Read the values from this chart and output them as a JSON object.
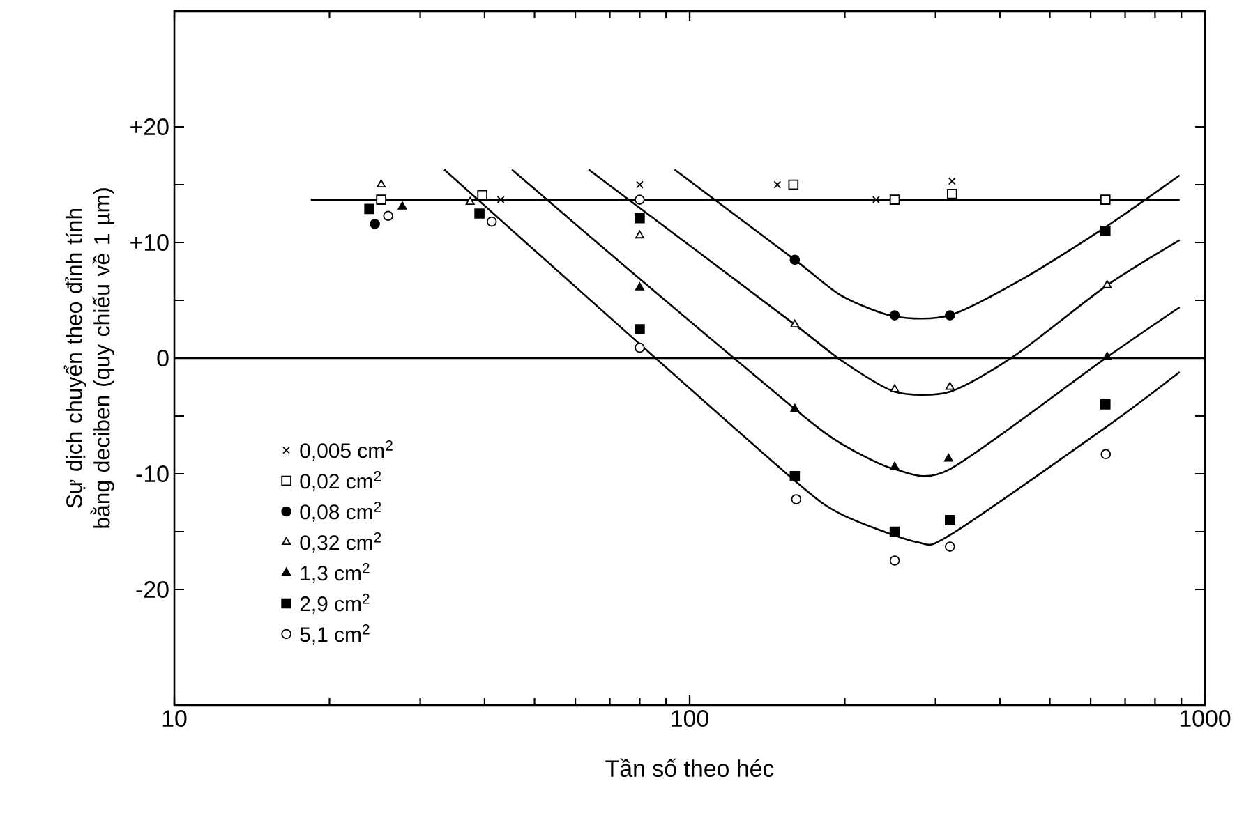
{
  "chart_data": {
    "type": "scatter",
    "xlabel": "Tần số theo héc",
    "ylabel": "Sự dịch chuyển theo đỉnh tính bằng deciben (quy chiếu về 1 µm)",
    "log": "x",
    "xlim": [
      10,
      1000
    ],
    "xticks": [
      10,
      100,
      1000
    ],
    "ylim": [
      -30,
      30
    ],
    "yticks": [
      {
        "value": 20,
        "label": "+20"
      },
      {
        "value": 15,
        "label": null
      },
      {
        "value": 10,
        "label": "+10"
      },
      {
        "value": 5,
        "label": null
      },
      0,
      {
        "value": -5,
        "label": null
      },
      -10,
      {
        "value": -15,
        "label": null
      },
      -20
    ],
    "legend": "bottom left",
    "grid": false,
    "ref_lines": [
      {
        "axis": "y",
        "value": 0,
        "color": "#000000"
      }
    ],
    "series": [
      {
        "name": "0,005 cm$^{2}$",
        "type": "scatter",
        "marker": "cross",
        "color": "#000000",
        "x": [
          43,
          80,
          148,
          230,
          323
        ],
        "values": [
          13.7,
          15.0,
          15.0,
          13.7,
          15.3
        ]
      },
      {
        "name": "0,02 cm$^{2}$",
        "type": "scatter",
        "marker": "square",
        "color": "#ffffff",
        "x": [
          25.2,
          39.6,
          159,
          250,
          323,
          641
        ],
        "values": [
          13.7,
          14.1,
          15.0,
          13.7,
          14.2,
          13.7
        ]
      },
      {
        "name": "0,08 cm$^{2}$",
        "type": "scatter",
        "marker": "circle",
        "color": "#000000",
        "x": [
          24.5,
          160,
          250,
          320
        ],
        "values": [
          11.6,
          8.5,
          3.7,
          3.7
        ]
      },
      {
        "name": "0,32 cm$^{2}$",
        "type": "scatter",
        "marker": "triangle",
        "color": "#ffffff",
        "x": [
          25.2,
          37.5,
          80,
          160,
          250,
          320,
          646
        ],
        "values": [
          15.0,
          13.5,
          10.6,
          2.9,
          -2.7,
          -2.5,
          6.3
        ]
      },
      {
        "name": "1,3 cm$^{2}$",
        "type": "scatter",
        "marker": "triangle",
        "color": "#000000",
        "x": [
          27.7,
          80,
          160,
          250,
          318,
          646
        ],
        "values": [
          13.1,
          6.1,
          -4.4,
          -9.4,
          -8.7,
          0.1
        ]
      },
      {
        "name": "2,9 cm$^{2}$",
        "type": "scatter",
        "marker": "square",
        "color": "#000000",
        "x": [
          23.9,
          39.1,
          80,
          80,
          160,
          250,
          320,
          641,
          641
        ],
        "values": [
          12.9,
          12.5,
          12.1,
          2.5,
          -10.2,
          -15.0,
          -14.0,
          11.0,
          -4.0
        ]
      },
      {
        "name": "5,1 cm$^{2}$",
        "type": "scatter",
        "marker": "circle",
        "color": "#ffffff",
        "x": [
          26,
          41.3,
          80,
          80,
          161,
          250,
          320,
          642
        ],
        "values": [
          12.3,
          11.8,
          13.7,
          0.9,
          -12.2,
          -17.5,
          -16.3,
          -8.3
        ]
      },
      {
        "type": "line",
        "color": "#000000",
        "x": [
          18.4,
          893
        ],
        "values": [
          13.7,
          13.7
        ]
      },
      {
        "type": "line",
        "color": "#000000",
        "x": [
          93.5,
          160,
          197,
          250,
          320,
          445,
          640,
          893
        ],
        "values": [
          16.3,
          8.5,
          5.4,
          3.6,
          3.7,
          6.9,
          11.3,
          15.8
        ]
      },
      {
        "type": "line",
        "color": "#000000",
        "x": [
          63.7,
          160,
          197,
          250,
          320,
          427,
          646,
          893
        ],
        "values": [
          16.3,
          2.9,
          -0.2,
          -2.9,
          -2.9,
          0.2,
          6.3,
          10.2
        ]
      },
      {
        "type": "line",
        "color": "#000000",
        "x": [
          45.2,
          76,
          160,
          197,
          250,
          320,
          646,
          893
        ],
        "values": [
          16.3,
          7.7,
          -4.4,
          -7.4,
          -9.6,
          -9.6,
          0.1,
          4.4
        ]
      },
      {
        "type": "line",
        "color": "#000000",
        "x": [
          33.4,
          76,
          160,
          197,
          276,
          320,
          641,
          893
        ],
        "values": [
          16.3,
          2.1,
          -10.6,
          -13.5,
          -15.9,
          -15.3,
          -6.0,
          -1.2
        ]
      }
    ]
  }
}
